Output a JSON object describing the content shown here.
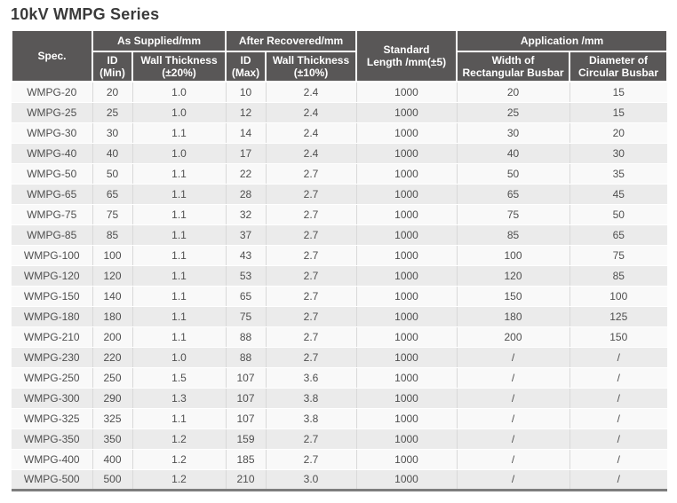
{
  "page_title": "10kV WMPG Series",
  "colors": {
    "header_bg": "#595757",
    "header_text": "#ffffff",
    "row_odd_bg": "#f9f9f9",
    "row_even_bg": "#ebebeb",
    "body_text": "#4f4f4f",
    "bottom_border": "#7d7d7d"
  },
  "table": {
    "header": {
      "spec": "Spec.",
      "as_supplied_group": "As Supplied/mm",
      "after_recovered_group": "After Recovered/mm",
      "application_group": "Application /mm",
      "standard_length": {
        "line1": "Standard",
        "line2": "Length /mm(±5)"
      },
      "id_min": {
        "line1": "ID",
        "line2": "(Min)"
      },
      "wall_thickness_20": {
        "line1": "Wall Thickness",
        "line2": "(±20%)"
      },
      "id_max": {
        "line1": "ID",
        "line2": "(Max)"
      },
      "wall_thickness_10": {
        "line1": "Wall Thickness",
        "line2": "(±10%)"
      },
      "width_rect_busbar": {
        "line1": "Width of",
        "line2": "Rectangular Busbar"
      },
      "diameter_circ_busbar": {
        "line1": "Diameter of",
        "line2": "Circular Busbar"
      }
    },
    "rows": [
      [
        "WMPG-20",
        "20",
        "1.0",
        "10",
        "2.4",
        "1000",
        "20",
        "15"
      ],
      [
        "WMPG-25",
        "25",
        "1.0",
        "12",
        "2.4",
        "1000",
        "25",
        "15"
      ],
      [
        "WMPG-30",
        "30",
        "1.1",
        "14",
        "2.4",
        "1000",
        "30",
        "20"
      ],
      [
        "WMPG-40",
        "40",
        "1.0",
        "17",
        "2.4",
        "1000",
        "40",
        "30"
      ],
      [
        "WMPG-50",
        "50",
        "1.1",
        "22",
        "2.7",
        "1000",
        "50",
        "35"
      ],
      [
        "WMPG-65",
        "65",
        "1.1",
        "28",
        "2.7",
        "1000",
        "65",
        "45"
      ],
      [
        "WMPG-75",
        "75",
        "1.1",
        "32",
        "2.7",
        "1000",
        "75",
        "50"
      ],
      [
        "WMPG-85",
        "85",
        "1.1",
        "37",
        "2.7",
        "1000",
        "85",
        "65"
      ],
      [
        "WMPG-100",
        "100",
        "1.1",
        "43",
        "2.7",
        "1000",
        "100",
        "75"
      ],
      [
        "WMPG-120",
        "120",
        "1.1",
        "53",
        "2.7",
        "1000",
        "120",
        "85"
      ],
      [
        "WMPG-150",
        "140",
        "1.1",
        "65",
        "2.7",
        "1000",
        "150",
        "100"
      ],
      [
        "WMPG-180",
        "180",
        "1.1",
        "75",
        "2.7",
        "1000",
        "180",
        "125"
      ],
      [
        "WMPG-210",
        "200",
        "1.1",
        "88",
        "2.7",
        "1000",
        "200",
        "150"
      ],
      [
        "WMPG-230",
        "220",
        "1.0",
        "88",
        "2.7",
        "1000",
        "/",
        "/"
      ],
      [
        "WMPG-250",
        "250",
        "1.5",
        "107",
        "3.6",
        "1000",
        "/",
        "/"
      ],
      [
        "WMPG-300",
        "290",
        "1.3",
        "107",
        "3.8",
        "1000",
        "/",
        "/"
      ],
      [
        "WMPG-325",
        "325",
        "1.1",
        "107",
        "3.8",
        "1000",
        "/",
        "/"
      ],
      [
        "WMPG-350",
        "350",
        "1.2",
        "159",
        "2.7",
        "1000",
        "/",
        "/"
      ],
      [
        "WMPG-400",
        "400",
        "1.2",
        "185",
        "2.7",
        "1000",
        "/",
        "/"
      ],
      [
        "WMPG-500",
        "500",
        "1.2",
        "210",
        "3.0",
        "1000",
        "/",
        "/"
      ]
    ]
  }
}
